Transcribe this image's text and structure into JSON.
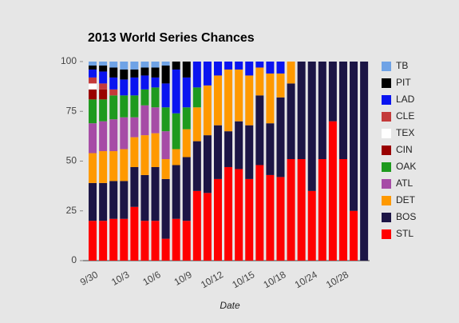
{
  "chart_data": {
    "type": "stacked_bar",
    "title": "2013 World Series Chances",
    "x_label": "Date",
    "categories": [
      "9/30",
      null,
      null,
      "10/3",
      null,
      null,
      "10/6",
      null,
      null,
      "10/9",
      null,
      null,
      "10/12",
      null,
      null,
      "10/15",
      null,
      null,
      "10/18",
      null,
      null,
      "10/24",
      null,
      null,
      "10/28",
      null,
      null
    ],
    "ylim": [
      0,
      100
    ],
    "yticks": [
      0,
      25,
      50,
      75,
      100
    ],
    "legend": "right",
    "series": [
      {
        "name": "STL",
        "color": "#ff0000",
        "values": [
          20,
          20,
          21,
          21,
          27,
          20,
          20,
          11,
          21,
          20,
          35,
          34,
          41,
          47,
          46,
          41,
          48,
          43,
          42,
          51,
          51,
          35,
          51,
          70,
          51,
          25,
          0
        ]
      },
      {
        "name": "BOS",
        "color": "#1c1545",
        "values": [
          19,
          19,
          19,
          19,
          20,
          23,
          27,
          30,
          27,
          32,
          25,
          29,
          27,
          18,
          24,
          27,
          35,
          26,
          40,
          38,
          49,
          65,
          49,
          30,
          49,
          75,
          100
        ]
      },
      {
        "name": "DET",
        "color": "#ff9900",
        "values": [
          15,
          16,
          15,
          16,
          15,
          20,
          17,
          10,
          8,
          14,
          17,
          25,
          25,
          31,
          26,
          25,
          14,
          25,
          12,
          11,
          0,
          0,
          0,
          0,
          0,
          0,
          0
        ]
      },
      {
        "name": "ATL",
        "color": "#a64ca6",
        "values": [
          15,
          15,
          16,
          16,
          10,
          15,
          13,
          14,
          0,
          0,
          0,
          0,
          0,
          0,
          0,
          0,
          0,
          0,
          0,
          0,
          0,
          0,
          0,
          0,
          0,
          0,
          0
        ]
      },
      {
        "name": "OAK",
        "color": "#1e9a1e",
        "values": [
          12,
          11,
          12,
          11,
          11,
          8,
          10,
          12,
          18,
          11,
          10,
          0,
          0,
          0,
          0,
          0,
          0,
          0,
          0,
          0,
          0,
          0,
          0,
          0,
          0,
          0,
          0
        ]
      },
      {
        "name": "CIN",
        "color": "#990000",
        "values": [
          5,
          5,
          0,
          0,
          0,
          0,
          0,
          0,
          0,
          0,
          0,
          0,
          0,
          0,
          0,
          0,
          0,
          0,
          0,
          0,
          0,
          0,
          0,
          0,
          0,
          0,
          0
        ]
      },
      {
        "name": "TEX",
        "color": "#ffffff",
        "values": [
          3,
          0,
          0,
          0,
          0,
          0,
          0,
          0,
          0,
          0,
          0,
          0,
          0,
          0,
          0,
          0,
          0,
          0,
          0,
          0,
          0,
          0,
          0,
          0,
          0,
          0,
          0
        ]
      },
      {
        "name": "CLE",
        "color": "#c43a3a",
        "values": [
          3,
          3,
          3,
          0,
          0,
          0,
          0,
          0,
          0,
          0,
          0,
          0,
          0,
          0,
          0,
          0,
          0,
          0,
          0,
          0,
          0,
          0,
          0,
          0,
          0,
          0,
          0
        ]
      },
      {
        "name": "LAD",
        "color": "#0a14f0",
        "values": [
          4,
          6,
          6,
          8,
          9,
          7,
          5,
          12,
          22,
          15,
          13,
          12,
          7,
          4,
          4,
          7,
          3,
          6,
          6,
          0,
          0,
          0,
          0,
          0,
          0,
          0,
          0
        ]
      },
      {
        "name": "PIT",
        "color": "#000000",
        "values": [
          2,
          3,
          5,
          5,
          4,
          4,
          5,
          9,
          4,
          8,
          0,
          0,
          0,
          0,
          0,
          0,
          0,
          0,
          0,
          0,
          0,
          0,
          0,
          0,
          0,
          0,
          0
        ]
      },
      {
        "name": "TB",
        "color": "#6fa3e6",
        "values": [
          2,
          2,
          3,
          4,
          4,
          3,
          3,
          2,
          0,
          0,
          0,
          0,
          0,
          0,
          0,
          0,
          0,
          0,
          0,
          0,
          0,
          0,
          0,
          0,
          0,
          0,
          0
        ]
      }
    ]
  }
}
